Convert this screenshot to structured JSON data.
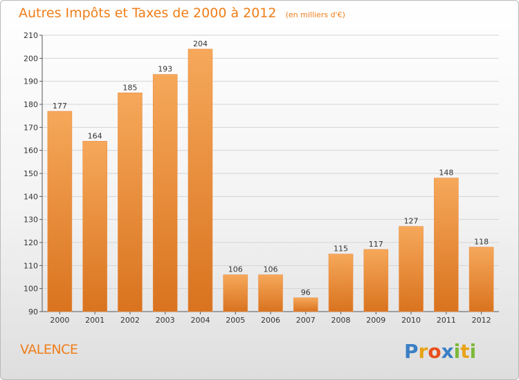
{
  "title": "Autres Impôts et Taxes de 2000 à 2012",
  "unit_note": "(en milliers d'€)",
  "city": "VALENCE",
  "logo_text": "Proxiti",
  "colors": {
    "accent": "#f07d17",
    "bar_light": "#f6a85a",
    "bar_dark": "#d9731f",
    "grid": "#d4d4d4"
  },
  "chart_data": {
    "type": "bar",
    "title": "Autres Impôts et Taxes de 2000 à 2012",
    "subtitle": "(en milliers d'€)",
    "xlabel": "",
    "ylabel": "",
    "categories": [
      "2000",
      "2001",
      "2002",
      "2003",
      "2004",
      "2005",
      "2006",
      "2007",
      "2008",
      "2009",
      "2010",
      "2011",
      "2012"
    ],
    "values": [
      177,
      164,
      185,
      193,
      204,
      106,
      106,
      96,
      115,
      117,
      127,
      148,
      118
    ],
    "ylim": [
      90,
      210
    ],
    "yticks": [
      90,
      100,
      110,
      120,
      130,
      140,
      150,
      160,
      170,
      180,
      190,
      200,
      210
    ],
    "grid": true,
    "data_labels": true
  }
}
